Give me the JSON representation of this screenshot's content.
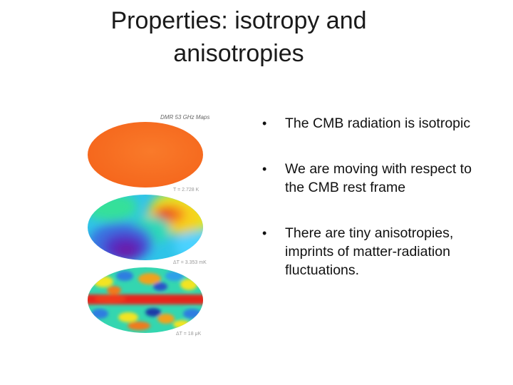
{
  "slide": {
    "title_line1": "Properties: isotropy and",
    "title_line2": "anisotropies",
    "figure": {
      "heading": "DMR 53 GHz Maps",
      "maps": [
        {
          "name": "monopole",
          "caption": "T = 2.728 K",
          "color": "#f86d22"
        },
        {
          "name": "dipole",
          "caption": "ΔT = 3.353 mK"
        },
        {
          "name": "fluctuations",
          "caption": "ΔT = 18 μK"
        }
      ]
    },
    "bullets": [
      "The CMB radiation is isotropic",
      "We are moving with respect to the CMB rest frame",
      "There are tiny anisotropies,  imprints of matter-radiation fluctuations."
    ],
    "bullet_symbol": "•"
  }
}
